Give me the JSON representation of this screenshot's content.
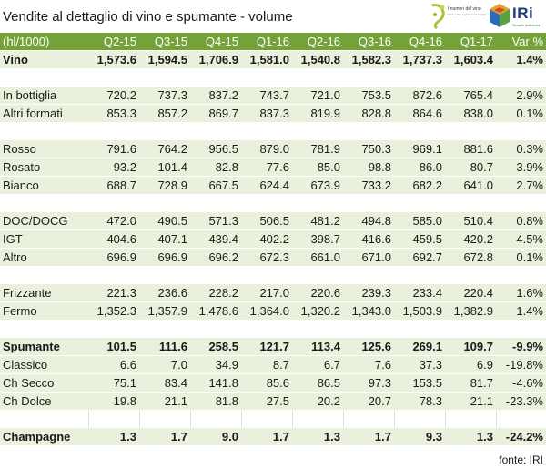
{
  "header": {
    "title": "Vendite al dettaglio di vino e spumante - volume",
    "logo1_text": "I numeri del vino",
    "logo1_sub": "Italian wine market & trade data",
    "logo2_text": "IRi",
    "logo2_sub": "Growth delivered"
  },
  "table": {
    "columns": [
      "(hl/1000)",
      "Q2-15",
      "Q3-15",
      "Q4-15",
      "Q1-16",
      "Q2-16",
      "Q3-16",
      "Q4-16",
      "Q1-17",
      "Var %"
    ],
    "rows": [
      {
        "type": "bold",
        "cells": [
          "Vino",
          "1,573.6",
          "1,594.5",
          "1,706.9",
          "1,581.0",
          "1,540.8",
          "1,582.3",
          "1,737.3",
          "1,603.4",
          "1.4%"
        ]
      },
      {
        "type": "gap"
      },
      {
        "type": "data",
        "cells": [
          "In bottiglia",
          "720.2",
          "737.3",
          "837.2",
          "743.7",
          "721.0",
          "753.5",
          "872.6",
          "765.4",
          "2.9%"
        ]
      },
      {
        "type": "data",
        "cells": [
          "Altri formati",
          "853.3",
          "857.2",
          "869.7",
          "837.3",
          "819.9",
          "828.8",
          "864.6",
          "838.0",
          "0.1%"
        ]
      },
      {
        "type": "gap"
      },
      {
        "type": "data",
        "cells": [
          "Rosso",
          "791.6",
          "764.2",
          "956.5",
          "879.0",
          "781.9",
          "750.3",
          "969.1",
          "881.6",
          "0.3%"
        ]
      },
      {
        "type": "data",
        "cells": [
          "Rosato",
          "93.2",
          "101.4",
          "82.8",
          "77.6",
          "85.0",
          "98.8",
          "86.0",
          "80.7",
          "3.9%"
        ]
      },
      {
        "type": "data",
        "cells": [
          "Bianco",
          "688.7",
          "728.9",
          "667.5",
          "624.4",
          "673.9",
          "733.2",
          "682.2",
          "641.0",
          "2.7%"
        ]
      },
      {
        "type": "gap"
      },
      {
        "type": "data",
        "cells": [
          "DOC/DOCG",
          "472.0",
          "490.5",
          "571.3",
          "506.5",
          "481.2",
          "494.8",
          "585.0",
          "510.4",
          "0.8%"
        ]
      },
      {
        "type": "data",
        "cells": [
          "IGT",
          "404.6",
          "407.1",
          "439.4",
          "402.2",
          "398.7",
          "416.6",
          "459.5",
          "420.2",
          "4.5%"
        ]
      },
      {
        "type": "data",
        "cells": [
          "Altro",
          "696.9",
          "696.9",
          "696.2",
          "672.3",
          "661.0",
          "671.0",
          "692.7",
          "672.8",
          "0.1%"
        ]
      },
      {
        "type": "gap"
      },
      {
        "type": "data",
        "cells": [
          "Frizzante",
          "221.3",
          "236.6",
          "228.2",
          "217.0",
          "220.6",
          "239.3",
          "233.4",
          "220.4",
          "1.6%"
        ]
      },
      {
        "type": "data",
        "cells": [
          "Fermo",
          "1,352.3",
          "1,357.9",
          "1,478.6",
          "1,364.0",
          "1,320.2",
          "1,343.0",
          "1,503.9",
          "1,382.9",
          "1.4%"
        ]
      },
      {
        "type": "gap"
      },
      {
        "type": "bold",
        "cells": [
          "Spumante",
          "101.5",
          "111.6",
          "258.5",
          "121.7",
          "113.4",
          "125.6",
          "269.1",
          "109.7",
          "-9.9%"
        ]
      },
      {
        "type": "data",
        "cells": [
          "Classico",
          "6.6",
          "7.0",
          "34.9",
          "8.7",
          "6.7",
          "7.6",
          "37.3",
          "6.9",
          "-19.8%"
        ]
      },
      {
        "type": "data",
        "cells": [
          "Ch Secco",
          "75.1",
          "83.4",
          "141.8",
          "85.6",
          "86.5",
          "97.3",
          "153.5",
          "81.7",
          "-4.6%"
        ]
      },
      {
        "type": "data",
        "cells": [
          "Ch Dolce",
          "19.8",
          "21.1",
          "81.8",
          "27.5",
          "20.2",
          "20.7",
          "78.3",
          "21.1",
          "-23.3%"
        ]
      },
      {
        "type": "gapboxed"
      },
      {
        "type": "bold",
        "cells": [
          "Champagne",
          "1.3",
          "1.7",
          "9.0",
          "1.7",
          "1.3",
          "1.7",
          "9.3",
          "1.3",
          "-24.2%"
        ]
      }
    ]
  },
  "source": "fonte: IRI",
  "colors": {
    "header_bg": "#73a239",
    "row_bg": "#e9f1dd",
    "logo_blue": "#1e3a7b"
  }
}
